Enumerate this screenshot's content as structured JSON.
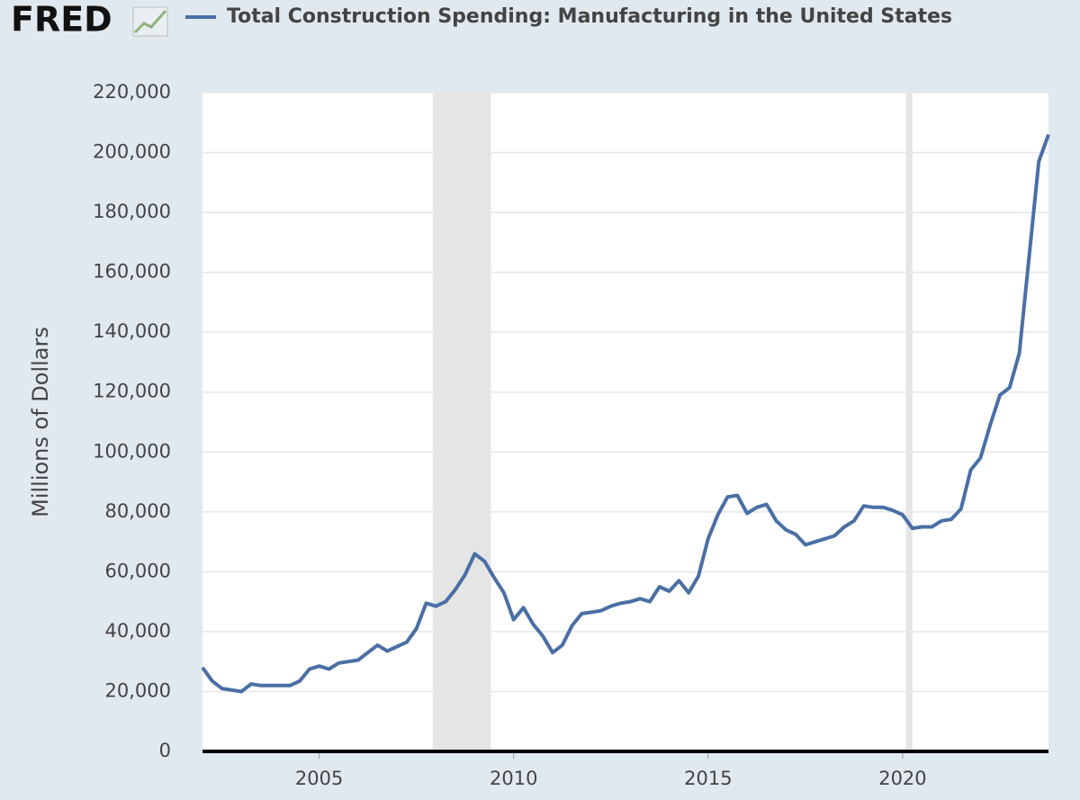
{
  "brand": "FRED",
  "chart_data": {
    "type": "line",
    "title": "Total Construction Spending: Manufacturing in the United States",
    "ylabel": "Millions of Dollars",
    "x": [
      2002.0,
      2002.25,
      2002.5,
      2002.75,
      2003.0,
      2003.25,
      2003.5,
      2003.75,
      2004.0,
      2004.25,
      2004.5,
      2004.75,
      2005.0,
      2005.25,
      2005.5,
      2005.75,
      2006.0,
      2006.25,
      2006.5,
      2006.75,
      2007.0,
      2007.25,
      2007.5,
      2007.75,
      2008.0,
      2008.25,
      2008.5,
      2008.75,
      2009.0,
      2009.25,
      2009.5,
      2009.75,
      2010.0,
      2010.25,
      2010.5,
      2010.75,
      2011.0,
      2011.25,
      2011.5,
      2011.75,
      2012.0,
      2012.25,
      2012.5,
      2012.75,
      2013.0,
      2013.25,
      2013.5,
      2013.75,
      2014.0,
      2014.25,
      2014.5,
      2014.75,
      2015.0,
      2015.25,
      2015.5,
      2015.75,
      2016.0,
      2016.25,
      2016.5,
      2016.75,
      2017.0,
      2017.25,
      2017.5,
      2017.75,
      2018.0,
      2018.25,
      2018.5,
      2018.75,
      2019.0,
      2019.25,
      2019.5,
      2019.75,
      2020.0,
      2020.25,
      2020.5,
      2020.75,
      2021.0,
      2021.25,
      2021.5,
      2021.75,
      2022.0,
      2022.25,
      2022.5,
      2022.75,
      2023.0,
      2023.25,
      2023.5,
      2023.75
    ],
    "series": [
      {
        "name": "Total Construction Spending: Manufacturing in the United States",
        "color": "#4a6fa5",
        "values": [
          28000,
          23500,
          21000,
          20500,
          20000,
          22500,
          22000,
          22000,
          22000,
          22000,
          23500,
          27500,
          28500,
          27500,
          29500,
          30000,
          30500,
          33000,
          35500,
          33500,
          35000,
          36500,
          41000,
          49500,
          48500,
          50000,
          54000,
          59000,
          66000,
          63500,
          58000,
          53000,
          44000,
          48000,
          42500,
          38500,
          33000,
          35500,
          42000,
          46000,
          46500,
          47000,
          48500,
          49500,
          50000,
          51000,
          50000,
          55000,
          53500,
          57000,
          53000,
          58500,
          71000,
          79000,
          85000,
          85500,
          79500,
          81500,
          82500,
          77000,
          74000,
          72500,
          69000,
          70000,
          71000,
          72000,
          75000,
          77000,
          82000,
          81500,
          81500,
          80500,
          79000,
          74500,
          75000,
          75000,
          77000,
          77500,
          81000,
          94000,
          98000,
          109000,
          119000,
          121500,
          133000,
          165000,
          197000,
          206000
        ]
      }
    ],
    "xlim": [
      2002,
      2023.75
    ],
    "xticks": [
      2005,
      2010,
      2015,
      2020
    ],
    "ylim": [
      0,
      220000
    ],
    "yticks": [
      0,
      {
        "value": 20000,
        "label": "20,000"
      },
      {
        "value": 40000,
        "label": "40,000"
      },
      {
        "value": 60000,
        "label": "60,000"
      },
      {
        "value": 80000,
        "label": "80,000"
      },
      {
        "value": 100000,
        "label": "100,000"
      },
      {
        "value": 120000,
        "label": "120,000"
      },
      {
        "value": 140000,
        "label": "140,000"
      },
      {
        "value": 160000,
        "label": "160,000"
      },
      {
        "value": 180000,
        "label": "180,000"
      },
      {
        "value": 200000,
        "label": "200,000"
      },
      {
        "value": 220000,
        "label": "220,000"
      }
    ],
    "recessions": [
      [
        2007.917,
        2009.417
      ],
      [
        2020.083,
        2020.25
      ]
    ],
    "grid": true
  }
}
